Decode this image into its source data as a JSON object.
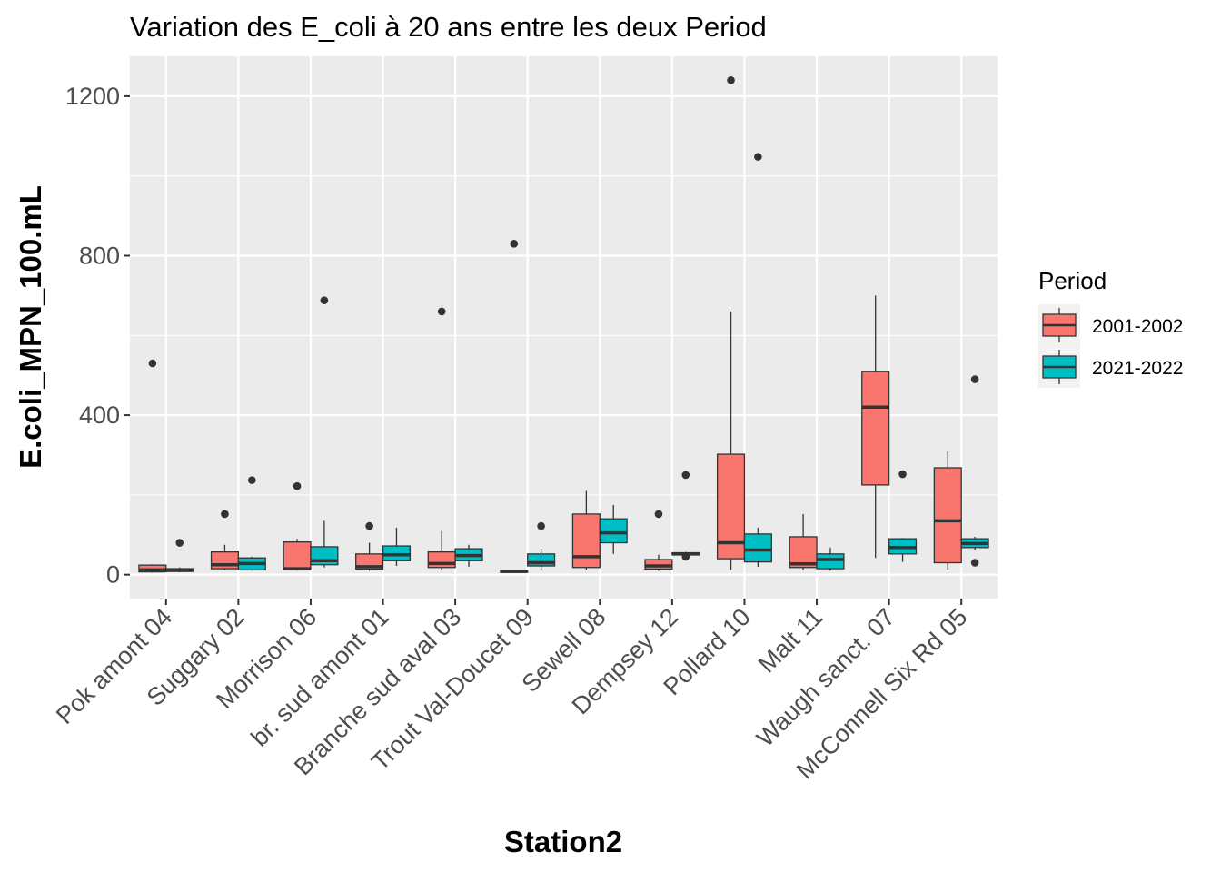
{
  "chart_data": {
    "type": "boxplot",
    "title": "Variation  des E_coli à 20 ans entre les deux Period",
    "xlabel": "Station2",
    "ylabel": "E.coli_MPN_100.mL",
    "ylim": [
      -60,
      1300
    ],
    "yticks": [
      0,
      400,
      800,
      1200
    ],
    "grid": true,
    "legend": {
      "title": "Period",
      "position": "right"
    },
    "categories": [
      "Pok amont 04",
      "Suggary 02",
      "Morrison 06",
      "br. sud amont 01",
      "Branche sud aval 03",
      "Trout Val-Doucet 09",
      "Sewell 08",
      "Dempsey 12",
      "Pollard 10",
      "Malt 11",
      "Waugh sanct. 07",
      "McConnell Six Rd 05"
    ],
    "series": [
      {
        "name": "2001-2002",
        "color": "#F8766D",
        "boxes": [
          {
            "min": 5,
            "q1": 7,
            "median": 12,
            "q3": 24,
            "max": 26,
            "outliers": [
              530
            ]
          },
          {
            "min": 12,
            "q1": 15,
            "median": 25,
            "q3": 57,
            "max": 75,
            "outliers": [
              152
            ]
          },
          {
            "min": 10,
            "q1": 12,
            "median": 15,
            "q3": 82,
            "max": 90,
            "outliers": [
              222
            ]
          },
          {
            "min": 10,
            "q1": 14,
            "median": 20,
            "q3": 52,
            "max": 80,
            "outliers": [
              122
            ]
          },
          {
            "min": 12,
            "q1": 18,
            "median": 28,
            "q3": 57,
            "max": 110,
            "outliers": [
              660
            ]
          },
          {
            "min": 5,
            "q1": 6,
            "median": 8,
            "q3": 10,
            "max": 12,
            "outliers": [
              830
            ]
          },
          {
            "min": 12,
            "q1": 18,
            "median": 45,
            "q3": 152,
            "max": 210,
            "outliers": []
          },
          {
            "min": 10,
            "q1": 14,
            "median": 22,
            "q3": 38,
            "max": 50,
            "outliers": [
              152
            ]
          },
          {
            "min": 12,
            "q1": 40,
            "median": 80,
            "q3": 302,
            "max": 660,
            "outliers": [
              1240
            ]
          },
          {
            "min": 12,
            "q1": 18,
            "median": 27,
            "q3": 95,
            "max": 152,
            "outliers": []
          },
          {
            "min": 42,
            "q1": 225,
            "median": 420,
            "q3": 510,
            "max": 700,
            "outliers": []
          },
          {
            "min": 12,
            "q1": 30,
            "median": 135,
            "q3": 268,
            "max": 310,
            "outliers": []
          }
        ]
      },
      {
        "name": "2021-2022",
        "color": "#00BFC4",
        "boxes": [
          {
            "min": 6,
            "q1": 8,
            "median": 12,
            "q3": 15,
            "max": 18,
            "outliers": [
              80
            ]
          },
          {
            "min": 10,
            "q1": 12,
            "median": 28,
            "q3": 42,
            "max": 45,
            "outliers": [
              237
            ]
          },
          {
            "min": 18,
            "q1": 25,
            "median": 35,
            "q3": 70,
            "max": 135,
            "outliers": [
              688
            ]
          },
          {
            "min": 22,
            "q1": 35,
            "median": 50,
            "q3": 72,
            "max": 118,
            "outliers": []
          },
          {
            "min": 20,
            "q1": 35,
            "median": 48,
            "q3": 65,
            "max": 75,
            "outliers": []
          },
          {
            "min": 10,
            "q1": 22,
            "median": 30,
            "q3": 52,
            "max": 65,
            "outliers": [
              122
            ]
          },
          {
            "min": 52,
            "q1": 80,
            "median": 105,
            "q3": 140,
            "max": 175,
            "outliers": []
          },
          {
            "min": 48,
            "q1": 50,
            "median": 52,
            "q3": 55,
            "max": 57,
            "outliers": [
              45,
              250
            ]
          },
          {
            "min": 20,
            "q1": 32,
            "median": 62,
            "q3": 102,
            "max": 118,
            "outliers": [
              1048
            ]
          },
          {
            "min": 10,
            "q1": 15,
            "median": 38,
            "q3": 52,
            "max": 68,
            "outliers": []
          },
          {
            "min": 32,
            "q1": 52,
            "median": 68,
            "q3": 90,
            "max": 92,
            "outliers": [
              252
            ]
          },
          {
            "min": 62,
            "q1": 68,
            "median": 78,
            "q3": 90,
            "max": 95,
            "outliers": [
              30,
              490
            ]
          }
        ]
      }
    ]
  }
}
